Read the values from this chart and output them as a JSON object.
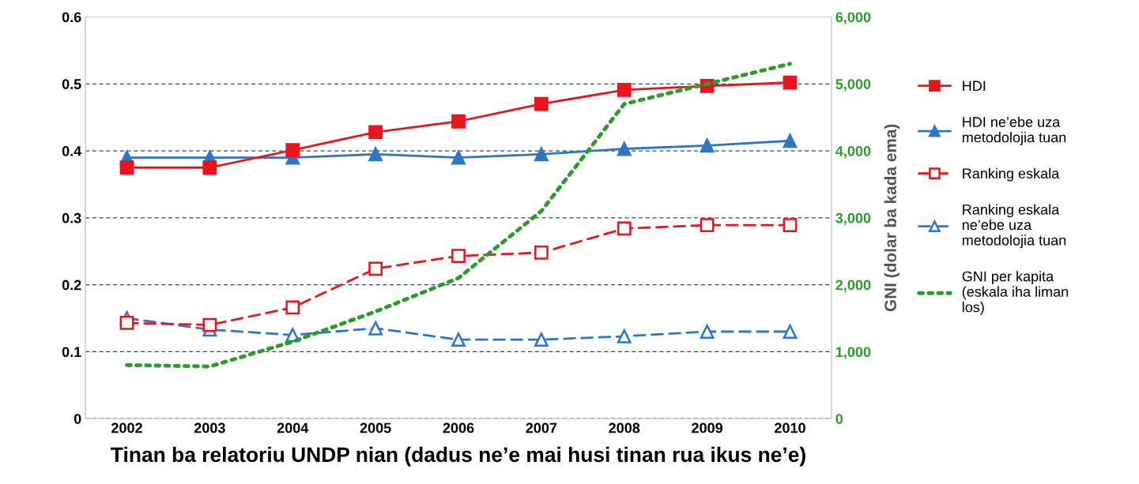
{
  "chart_data": {
    "type": "line",
    "xlabel": "Tinan ba relatoriu UNDP nian (dadus ne’e mai husi tinan rua ikus ne’e)",
    "y2label": "GNI (dolar ba kada ema)",
    "categories": [
      "2002",
      "2003",
      "2004",
      "2005",
      "2006",
      "2007",
      "2008",
      "2009",
      "2010"
    ],
    "series": [
      {
        "name": "HDI",
        "color": "#e8141e",
        "marker": "square",
        "line_style": "solid",
        "values": [
          0.375,
          0.375,
          0.401,
          0.428,
          0.444,
          0.47,
          0.491,
          0.497,
          0.502
        ]
      },
      {
        "name": "HDI ne’ebe uza\nmetodolojia tuan",
        "color": "#2e75c6",
        "marker": "triangle",
        "line_style": "solid",
        "values": [
          0.39,
          0.39,
          0.39,
          0.395,
          0.39,
          0.395,
          0.403,
          0.408,
          0.415
        ]
      },
      {
        "name": "Ranking eskala",
        "color": "#e8141e",
        "marker": "square",
        "line_style": "dashed",
        "values": [
          0.143,
          0.14,
          0.166,
          0.224,
          0.243,
          0.248,
          0.284,
          0.289,
          0.289
        ]
      },
      {
        "name": "Ranking eskala\nne’ebe uza\nmetodolojia tuan",
        "color": "#2e75c6",
        "marker": "triangle",
        "line_style": "dashed",
        "values": [
          0.15,
          0.133,
          0.125,
          0.135,
          0.118,
          0.118,
          0.123,
          0.13,
          0.13
        ]
      },
      {
        "name": "GNI per kapita\n(eskala iha liman\nlos)",
        "color": "#2e9a2e",
        "marker": "none",
        "line_style": "dotted",
        "axis": "y2",
        "values": [
          800,
          780,
          1150,
          1600,
          2100,
          3100,
          4700,
          5000,
          5300
        ]
      }
    ],
    "ylim": [
      0,
      0.6
    ],
    "yticks": [
      0,
      0.1,
      0.2,
      0.3,
      0.4,
      0.5,
      0.6
    ],
    "y2lim": [
      0,
      6000
    ],
    "y2ticks": [
      0,
      {
        "value": 1000,
        "label": "1,000"
      },
      {
        "value": 2000,
        "label": "2,000"
      },
      {
        "value": 3000,
        "label": "3,000"
      },
      {
        "value": 4000,
        "label": "4,000"
      },
      {
        "value": 5000,
        "label": "5,000"
      },
      {
        "value": 6000,
        "label": "6,000"
      }
    ],
    "grid": "y",
    "legend": "right"
  }
}
